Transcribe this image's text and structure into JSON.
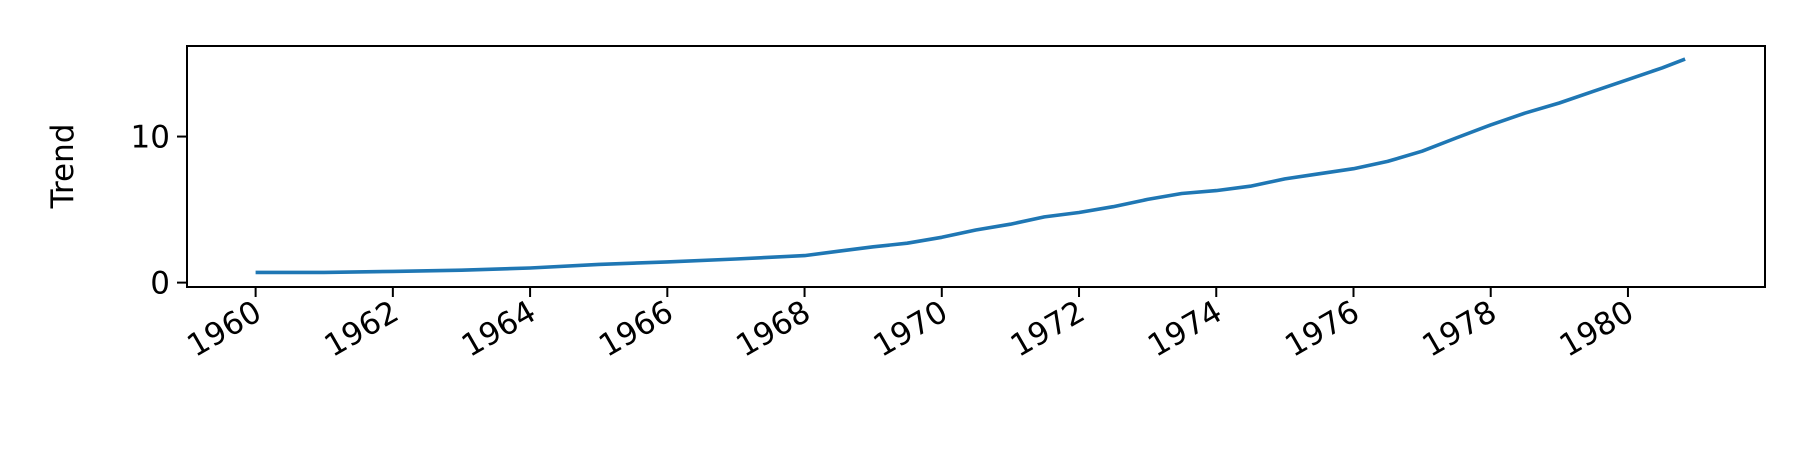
{
  "chart_data": {
    "type": "line",
    "title": "",
    "xlabel": "",
    "ylabel": "Trend",
    "x_type": "date",
    "xlim": [
      "1959-01-01",
      "1981-12-31"
    ],
    "ylim": [
      -0.3,
      16.2
    ],
    "x_ticks": [
      "1960",
      "1962",
      "1964",
      "1966",
      "1968",
      "1970",
      "1972",
      "1974",
      "1976",
      "1978",
      "1980"
    ],
    "y_ticks": [
      0,
      10
    ],
    "grid": false,
    "legend": "none",
    "colors": {
      "series": "#1f77b4",
      "axes": "#000000",
      "background": "#ffffff"
    },
    "series": [
      {
        "values": [
          [
            "1960-01-01",
            0.7
          ],
          [
            "1961-01-01",
            0.7
          ],
          [
            "1962-01-01",
            0.77
          ],
          [
            "1963-01-01",
            0.85
          ],
          [
            "1964-01-01",
            1.0
          ],
          [
            "1965-01-01",
            1.25
          ],
          [
            "1966-01-01",
            1.42
          ],
          [
            "1967-01-01",
            1.62
          ],
          [
            "1968-01-01",
            1.85
          ],
          [
            "1968-07-01",
            2.15
          ],
          [
            "1969-01-01",
            2.45
          ],
          [
            "1969-07-01",
            2.7
          ],
          [
            "1970-01-01",
            3.1
          ],
          [
            "1970-07-01",
            3.6
          ],
          [
            "1971-01-01",
            4.0
          ],
          [
            "1971-07-01",
            4.5
          ],
          [
            "1972-01-01",
            4.8
          ],
          [
            "1972-07-01",
            5.2
          ],
          [
            "1973-01-01",
            5.7
          ],
          [
            "1973-07-01",
            6.1
          ],
          [
            "1974-01-01",
            6.3
          ],
          [
            "1974-07-01",
            6.6
          ],
          [
            "1975-01-01",
            7.1
          ],
          [
            "1975-07-01",
            7.45
          ],
          [
            "1976-01-01",
            7.8
          ],
          [
            "1976-07-01",
            8.3
          ],
          [
            "1977-01-01",
            9.0
          ],
          [
            "1977-07-01",
            9.9
          ],
          [
            "1978-01-01",
            10.8
          ],
          [
            "1978-07-01",
            11.6
          ],
          [
            "1979-01-01",
            12.3
          ],
          [
            "1979-07-01",
            13.1
          ],
          [
            "1980-01-01",
            13.9
          ],
          [
            "1980-07-01",
            14.7
          ],
          [
            "1980-11-01",
            15.3
          ]
        ]
      }
    ]
  }
}
